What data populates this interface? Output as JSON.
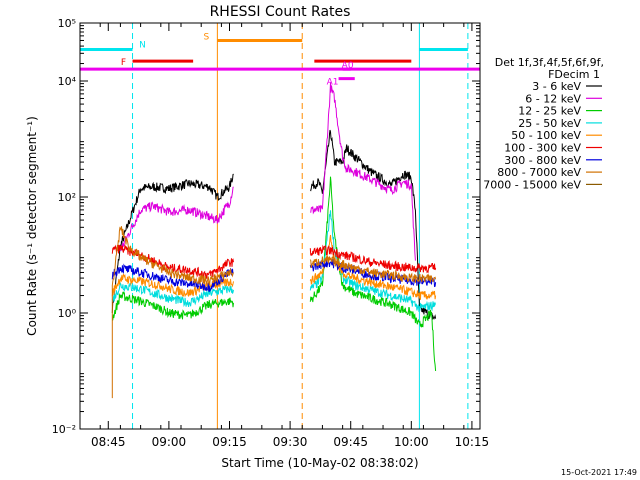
{
  "chart_data": {
    "type": "line",
    "title": "RHESSI Count Rates",
    "xlabel": "Start Time (10-May-02 08:38:02)",
    "ylabel": "Count Rate (s⁻¹ detector segment⁻¹)",
    "xlim": [
      "08:38",
      "10:17"
    ],
    "ylim": [
      0.01,
      100000
    ],
    "yscale": "log",
    "x_ticks": [
      "08:45",
      "09:00",
      "09:15",
      "09:30",
      "09:45",
      "10:00",
      "10:15"
    ],
    "y_ticks": [
      {
        "value": 0.01,
        "label": "10⁻²"
      },
      {
        "value": 1,
        "label": "10⁰"
      },
      {
        "value": 100,
        "label": "10²"
      },
      {
        "value": 10000,
        "label": "10⁴"
      },
      {
        "value": 100000,
        "label": "10⁵"
      }
    ],
    "legend": {
      "header": [
        "Det 1f,3f,4f,5f,6f,9f,",
        "FDecim 1"
      ],
      "placement": "right"
    },
    "series": [
      {
        "name": "3 - 6 keV",
        "color": "#000000",
        "seg1": [
          [
            "08:46",
            1.2
          ],
          [
            "08:48",
            14
          ],
          [
            "08:53",
            140
          ],
          [
            "08:56",
            150
          ],
          [
            "09:00",
            140
          ],
          [
            "09:05",
            170
          ],
          [
            "09:10",
            150
          ],
          [
            "09:12",
            100
          ],
          [
            "09:15",
            150
          ],
          [
            "09:16",
            250
          ]
        ],
        "seg2": [
          [
            "09:35",
            150
          ],
          [
            "09:37",
            180
          ],
          [
            "09:38",
            120
          ],
          [
            "09:40",
            1400
          ],
          [
            "09:41",
            400
          ],
          [
            "09:43",
            400
          ],
          [
            "09:44",
            700
          ],
          [
            "09:46",
            500
          ],
          [
            "09:50",
            270
          ],
          [
            "09:55",
            160
          ],
          [
            "09:58",
            250
          ],
          [
            "10:00",
            220
          ],
          [
            "10:01",
            60
          ],
          [
            "10:02",
            1.2
          ],
          [
            "10:06",
            0.8
          ]
        ]
      },
      {
        "name": "6 - 12 keV",
        "color": "#dd00dd",
        "seg1": [
          [
            "08:48",
            12
          ],
          [
            "08:53",
            60
          ],
          [
            "08:56",
            70
          ],
          [
            "09:00",
            55
          ],
          [
            "09:05",
            60
          ],
          [
            "09:10",
            45
          ],
          [
            "09:12",
            40
          ],
          [
            "09:15",
            80
          ],
          [
            "09:16",
            150
          ]
        ],
        "seg2": [
          [
            "09:35",
            60
          ],
          [
            "09:38",
            60
          ],
          [
            "09:40",
            8000
          ],
          [
            "09:41",
            5000
          ],
          [
            "09:42",
            1500
          ],
          [
            "09:43",
            500
          ],
          [
            "09:44",
            300
          ],
          [
            "09:45",
            300
          ],
          [
            "09:50",
            200
          ],
          [
            "09:55",
            130
          ],
          [
            "09:58",
            180
          ],
          [
            "10:00",
            160
          ],
          [
            "10:01",
            8
          ]
        ]
      },
      {
        "name": "12 - 25 keV",
        "color": "#00cc00",
        "seg1": [
          [
            "08:46",
            0.8
          ],
          [
            "08:48",
            2
          ],
          [
            "08:53",
            1.6
          ],
          [
            "08:58",
            1.2
          ],
          [
            "09:00",
            1.0
          ],
          [
            "09:05",
            0.9
          ],
          [
            "09:10",
            1.4
          ],
          [
            "09:15",
            1.6
          ],
          [
            "09:16",
            1.5
          ]
        ],
        "seg2": [
          [
            "09:35",
            1.6
          ],
          [
            "09:38",
            3
          ],
          [
            "09:40",
            200
          ],
          [
            "09:41",
            20
          ],
          [
            "09:43",
            3
          ],
          [
            "09:46",
            2.2
          ],
          [
            "09:50",
            1.8
          ],
          [
            "09:55",
            1.4
          ],
          [
            "10:00",
            1.0
          ],
          [
            "10:02",
            0.6
          ],
          [
            "10:05",
            1.0
          ],
          [
            "10:06",
            0.1
          ]
        ]
      },
      {
        "name": "25 - 50 keV",
        "color": "#00dddd",
        "seg1": [
          [
            "08:46",
            1.6
          ],
          [
            "08:48",
            3
          ],
          [
            "08:53",
            2.6
          ],
          [
            "08:58",
            2
          ],
          [
            "09:00",
            1.8
          ],
          [
            "09:05",
            1.5
          ],
          [
            "09:10",
            2.2
          ],
          [
            "09:15",
            2.6
          ],
          [
            "09:16",
            2.5
          ]
        ],
        "seg2": [
          [
            "09:35",
            2.5
          ],
          [
            "09:38",
            4
          ],
          [
            "09:40",
            60
          ],
          [
            "09:41",
            12
          ],
          [
            "09:43",
            4
          ],
          [
            "09:46",
            3
          ],
          [
            "09:50",
            2.5
          ],
          [
            "09:55",
            2.0
          ],
          [
            "10:00",
            1.6
          ],
          [
            "10:02",
            1.2
          ],
          [
            "10:06",
            1.4
          ]
        ]
      },
      {
        "name": "50 - 100 keV",
        "color": "#ff8c00",
        "seg1": [
          [
            "08:46",
            2.2
          ],
          [
            "08:48",
            4
          ],
          [
            "08:53",
            3.5
          ],
          [
            "08:58",
            3
          ],
          [
            "09:00",
            2.6
          ],
          [
            "09:05",
            2.2
          ],
          [
            "09:10",
            3
          ],
          [
            "09:15",
            3.4
          ],
          [
            "09:16",
            3.5
          ]
        ],
        "seg2": [
          [
            "09:35",
            3.5
          ],
          [
            "09:38",
            5
          ],
          [
            "09:40",
            20
          ],
          [
            "09:41",
            8
          ],
          [
            "09:43",
            5
          ],
          [
            "09:46",
            4
          ],
          [
            "09:50",
            3.4
          ],
          [
            "09:55",
            2.8
          ],
          [
            "10:00",
            2.3
          ],
          [
            "10:02",
            2
          ],
          [
            "10:06",
            2
          ]
        ]
      },
      {
        "name": "100 - 300 keV",
        "color": "#ee0000",
        "seg1": [
          [
            "08:46",
            12
          ],
          [
            "08:48",
            13
          ],
          [
            "08:53",
            10
          ],
          [
            "08:58",
            7
          ],
          [
            "09:00",
            6
          ],
          [
            "09:05",
            5.5
          ],
          [
            "09:10",
            4.5
          ],
          [
            "09:15",
            7.5
          ],
          [
            "09:16",
            7.5
          ]
        ],
        "seg2": [
          [
            "09:35",
            11
          ],
          [
            "09:38",
            12
          ],
          [
            "09:40",
            12
          ],
          [
            "09:43",
            10
          ],
          [
            "09:46",
            9
          ],
          [
            "09:50",
            7.5
          ],
          [
            "09:55",
            6.5
          ],
          [
            "10:00",
            6
          ],
          [
            "10:06",
            6
          ]
        ]
      },
      {
        "name": "300 - 800 keV",
        "color": "#0000dd",
        "seg1": [
          [
            "08:46",
            4.5
          ],
          [
            "08:48",
            6
          ],
          [
            "08:53",
            5
          ],
          [
            "08:58",
            4
          ],
          [
            "09:00",
            3.6
          ],
          [
            "09:05",
            3.2
          ],
          [
            "09:10",
            2.8
          ],
          [
            "09:15",
            5
          ],
          [
            "09:16",
            5
          ]
        ],
        "seg2": [
          [
            "09:35",
            6
          ],
          [
            "09:38",
            7
          ],
          [
            "09:40",
            7.5
          ],
          [
            "09:43",
            6
          ],
          [
            "09:46",
            5.5
          ],
          [
            "09:50",
            4.5
          ],
          [
            "09:55",
            4
          ],
          [
            "10:00",
            3.6
          ],
          [
            "10:06",
            3.4
          ]
        ]
      },
      {
        "name": "800 - 7000 keV",
        "color": "#d07000",
        "seg1": [
          [
            "08:46",
            0.03
          ],
          [
            "08:46",
            3.0
          ],
          [
            "08:48",
            30
          ],
          [
            "08:50",
            14
          ],
          [
            "08:53",
            9
          ],
          [
            "08:58",
            6
          ],
          [
            "09:00",
            5
          ],
          [
            "09:05",
            4
          ],
          [
            "09:10",
            3.6
          ],
          [
            "09:15",
            5
          ],
          [
            "09:16",
            5
          ]
        ],
        "seg2": [
          [
            "09:35",
            7
          ],
          [
            "09:38",
            8
          ],
          [
            "09:40",
            8
          ],
          [
            "09:43",
            7
          ],
          [
            "09:46",
            6
          ],
          [
            "09:50",
            5
          ],
          [
            "09:55",
            4.5
          ],
          [
            "10:00",
            4
          ],
          [
            "10:06",
            3.8
          ]
        ]
      },
      {
        "name": "7000 - 15000 keV",
        "color": "#8b5a00",
        "seg1": [],
        "seg2": []
      }
    ],
    "overlays": {
      "bars": [
        {
          "label": "N",
          "color": "#00e5ee",
          "from": "08:38",
          "to": "08:51",
          "level": 35000
        },
        {
          "label": "",
          "color": "#00e5ee",
          "from": "10:02",
          "to": "10:14",
          "level": 35000
        },
        {
          "label": "F",
          "color": "#ee0000",
          "from": "08:51",
          "to": "09:06",
          "level": 22000
        },
        {
          "label": "",
          "color": "#ee0000",
          "from": "09:36",
          "to": "10:00",
          "level": 22000
        },
        {
          "label": "S",
          "color": "#ff8c00",
          "from": "09:12",
          "to": "09:33",
          "level": 50000
        },
        {
          "label": "",
          "color": "#ee00ee",
          "from": "08:38",
          "to": "10:17",
          "level": 16000
        },
        {
          "label": "A0",
          "color": "#ee00ee",
          "from": "09:43",
          "to": "09:45",
          "level": 16000
        },
        {
          "label": "A1",
          "color": "#ee00ee",
          "from": "09:42",
          "to": "09:46",
          "level": 11000
        }
      ],
      "vlines": [
        {
          "time": "08:38",
          "color": "#00e5ee",
          "style": "solid"
        },
        {
          "time": "08:51",
          "color": "#00e5ee",
          "style": "dashed"
        },
        {
          "time": "09:12",
          "color": "#ff8c00",
          "style": "solid"
        },
        {
          "time": "09:33",
          "color": "#ff8c00",
          "style": "dashed"
        },
        {
          "time": "10:02",
          "color": "#00e5ee",
          "style": "solid"
        },
        {
          "time": "10:14",
          "color": "#00e5ee",
          "style": "dashed"
        }
      ]
    }
  },
  "footer": {
    "timestamp": "15-Oct-2021 17:49"
  }
}
